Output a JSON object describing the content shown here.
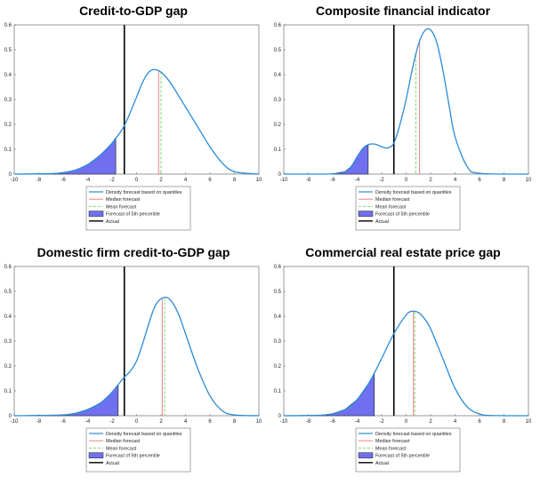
{
  "chart_data": [
    {
      "type": "line",
      "title": "Credit-to-GDP gap",
      "xlim": [
        -10,
        10
      ],
      "ylim": [
        0,
        0.6
      ],
      "xticks": [
        "-10",
        "-8",
        "-6",
        "-4",
        "-2",
        "0",
        "2",
        "4",
        "6",
        "8",
        "10"
      ],
      "yticks": [
        "0",
        "0.1",
        "0.2",
        "0.3",
        "0.4",
        "0.5",
        "0.6"
      ],
      "density": {
        "x": [
          -10,
          -7,
          -6,
          -5,
          -4,
          -3,
          -2,
          -1,
          0,
          0.5,
          1,
          1.5,
          2,
          2.5,
          3,
          4,
          5,
          6,
          7,
          8,
          10
        ],
        "y": [
          0,
          0.002,
          0.006,
          0.016,
          0.038,
          0.075,
          0.125,
          0.195,
          0.31,
          0.37,
          0.41,
          0.42,
          0.41,
          0.385,
          0.35,
          0.27,
          0.19,
          0.11,
          0.045,
          0.01,
          0
        ]
      },
      "actual": -1,
      "median": 1.8,
      "mean": 2.0,
      "p5": -1.7,
      "legend": [
        "Density forecast based on quantiles",
        "Median forecast",
        "Mean forecast",
        "Forecast of 5th percentile",
        "Actual"
      ]
    },
    {
      "type": "line",
      "title": "Composite financial indicator",
      "xlim": [
        -10,
        10
      ],
      "ylim": [
        0,
        0.6
      ],
      "xticks": [
        "-10",
        "-8",
        "-6",
        "-4",
        "-2",
        "0",
        "2",
        "4",
        "6",
        "8",
        "10"
      ],
      "yticks": [
        "0",
        "0.1",
        "0.2",
        "0.3",
        "0.4",
        "0.5",
        "0.6"
      ],
      "density": {
        "x": [
          -10,
          -6,
          -5,
          -4.5,
          -4,
          -3.5,
          -3,
          -2.5,
          -2,
          -1.5,
          -1,
          -0.5,
          0,
          0.5,
          1,
          1.5,
          2,
          2.5,
          3,
          3.5,
          4,
          5,
          6,
          10
        ],
        "y": [
          0,
          0.001,
          0.01,
          0.03,
          0.07,
          0.105,
          0.12,
          0.12,
          0.11,
          0.105,
          0.125,
          0.2,
          0.3,
          0.42,
          0.52,
          0.575,
          0.58,
          0.53,
          0.42,
          0.28,
          0.15,
          0.03,
          0.003,
          0
        ]
      },
      "actual": -1,
      "median": 1.1,
      "mean": 0.8,
      "p5": -3.1,
      "legend": [
        "Density forecast based on quantiles",
        "Median forecast",
        "Mean forecast",
        "Forecast of 5th percentile",
        "Actual"
      ]
    },
    {
      "type": "line",
      "title": "Domestic firm credit-to-GDP gap",
      "xlim": [
        -10,
        10
      ],
      "ylim": [
        0,
        0.6
      ],
      "xticks": [
        "-10",
        "-8",
        "-6",
        "-4",
        "-2",
        "0",
        "2",
        "4",
        "6",
        "8",
        "10"
      ],
      "yticks": [
        "0",
        "0.1",
        "0.2",
        "0.3",
        "0.4",
        "0.5",
        "0.6"
      ],
      "density": {
        "x": [
          -10,
          -6,
          -5,
          -4,
          -3,
          -2.5,
          -2,
          -1.5,
          -1,
          -0.5,
          0,
          0.5,
          1,
          1.5,
          2,
          2.5,
          3,
          3.5,
          4,
          5,
          6,
          7,
          8,
          10
        ],
        "y": [
          0,
          0.003,
          0.01,
          0.025,
          0.05,
          0.07,
          0.095,
          0.125,
          0.155,
          0.18,
          0.22,
          0.29,
          0.37,
          0.44,
          0.47,
          0.475,
          0.45,
          0.4,
          0.33,
          0.19,
          0.08,
          0.02,
          0.003,
          0
        ]
      },
      "actual": -1,
      "median": 2.1,
      "mean": 2.3,
      "p5": -1.5,
      "legend": [
        "Density forecast based on quantiles",
        "Median forecast",
        "Mean forecast",
        "Forecast of 5th percentile",
        "Actual"
      ]
    },
    {
      "type": "line",
      "title": "Commercial real estate price gap",
      "xlim": [
        -10,
        10
      ],
      "ylim": [
        0,
        0.6
      ],
      "xticks": [
        "-10",
        "-8",
        "-6",
        "-4",
        "-2",
        "0",
        "2",
        "4",
        "6",
        "8",
        "10"
      ],
      "yticks": [
        "0",
        "0.1",
        "0.2",
        "0.3",
        "0.4",
        "0.5",
        "0.6"
      ],
      "density": {
        "x": [
          -10,
          -7,
          -6,
          -5,
          -4,
          -3,
          -2,
          -1,
          0,
          0.5,
          1,
          1.5,
          2,
          3,
          4,
          5,
          6,
          7,
          10
        ],
        "y": [
          0,
          0.002,
          0.008,
          0.025,
          0.065,
          0.135,
          0.23,
          0.33,
          0.405,
          0.42,
          0.415,
          0.39,
          0.35,
          0.23,
          0.11,
          0.035,
          0.007,
          0.001,
          0
        ]
      },
      "actual": -1,
      "median": 0.6,
      "mean": 0.7,
      "p5": -2.6,
      "legend": [
        "Density forecast based on quantiles",
        "Median forecast",
        "Mean forecast",
        "Forecast of 5th percentile",
        "Actual"
      ]
    }
  ],
  "colors": {
    "density": "#2a8bd8",
    "median": "#f08080",
    "mean": "#7cd66d",
    "fill": "#7070ee",
    "actual": "#000000"
  }
}
